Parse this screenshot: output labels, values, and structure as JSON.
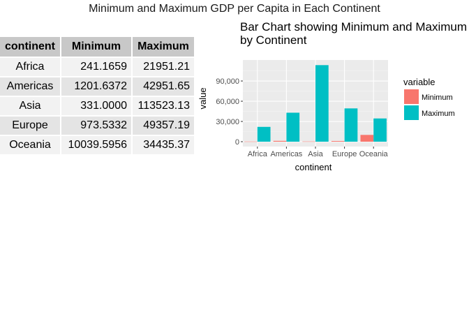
{
  "page_title": "Minimum and Maximum GDP per Capita in Each Continent",
  "table": {
    "headers": [
      "continent",
      "Minimum",
      "Maximum"
    ],
    "rows": [
      [
        "Africa",
        "241.1659",
        "21951.21"
      ],
      [
        "Americas",
        "1201.6372",
        "42951.65"
      ],
      [
        "Asia",
        "331.0000",
        "113523.13"
      ],
      [
        "Europe",
        "973.5332",
        "49357.19"
      ],
      [
        "Oceania",
        "10039.5956",
        "34435.37"
      ]
    ]
  },
  "chart_data": {
    "type": "bar",
    "title": "Bar Chart showing Minimum and Maximum GDP per Capita",
    "title_lines": [
      "Bar Chart showing Minimum and Maximum GDP per Capita",
      "by Continent"
    ],
    "xlabel": "continent",
    "ylabel": "value",
    "categories": [
      "Africa",
      "Americas",
      "Asia",
      "Europe",
      "Oceania"
    ],
    "series": [
      {
        "name": "Minimum",
        "color": "#F8766D",
        "values": [
          241.1659,
          1201.6372,
          331.0,
          973.5332,
          10039.5956
        ]
      },
      {
        "name": "Maximum",
        "color": "#00BFC4",
        "values": [
          21951.21,
          42951.65,
          113523.13,
          49357.19,
          34435.37
        ]
      }
    ],
    "ylim": [
      0,
      118000
    ],
    "yticks": [
      0,
      30000,
      60000,
      90000
    ],
    "ytick_labels": [
      "0",
      "30,000",
      "60,000",
      "90,000"
    ],
    "legend": {
      "title": "variable",
      "position": "right"
    },
    "grid": true,
    "panel_background": "#EBEBEB"
  }
}
